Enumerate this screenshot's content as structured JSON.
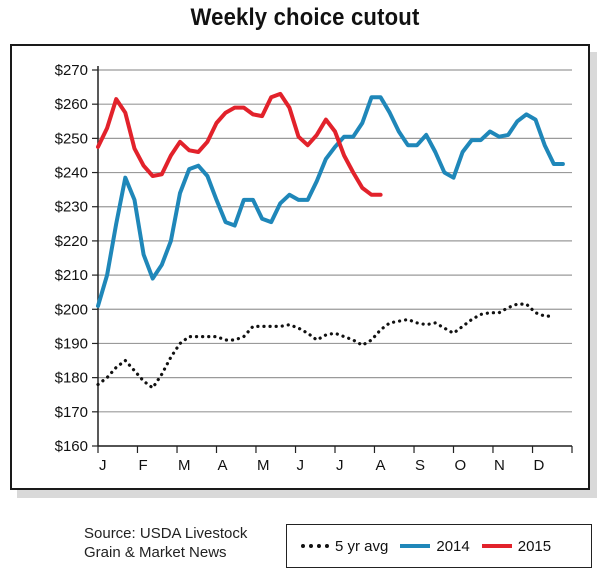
{
  "chart_data": {
    "type": "line",
    "title": "Weekly choice cutout",
    "ylim": [
      160,
      270
    ],
    "yticks": [
      160,
      170,
      180,
      190,
      200,
      210,
      220,
      230,
      240,
      250,
      260,
      270
    ],
    "ytick_labels": [
      "$160",
      "$170",
      "$180",
      "$190",
      "$200",
      "$210",
      "$220",
      "$230",
      "$240",
      "$250",
      "$260",
      "$270"
    ],
    "xlim": [
      0,
      52
    ],
    "month_ticks": [
      0,
      4.33,
      8.67,
      13,
      17.33,
      21.67,
      26,
      30.33,
      34.67,
      39,
      43.33,
      47.67,
      52
    ],
    "month_labels": [
      "J",
      "F",
      "M",
      "A",
      "M",
      "J",
      "J",
      "A",
      "S",
      "O",
      "N",
      "D"
    ],
    "grid": "horizontal",
    "series": [
      {
        "name": "5 yr avg",
        "color": "#111111",
        "style": "dotted",
        "points": [
          [
            0,
            178
          ],
          [
            1,
            180
          ],
          [
            2,
            183
          ],
          [
            3,
            185
          ],
          [
            4,
            182
          ],
          [
            5,
            179
          ],
          [
            6,
            177
          ],
          [
            7,
            181
          ],
          [
            8,
            186
          ],
          [
            9,
            190
          ],
          [
            10,
            192
          ],
          [
            11,
            192
          ],
          [
            12,
            192
          ],
          [
            13,
            192
          ],
          [
            14,
            191
          ],
          [
            15,
            191
          ],
          [
            16,
            192
          ],
          [
            17,
            195
          ],
          [
            18,
            195
          ],
          [
            19,
            195
          ],
          [
            20,
            195
          ],
          [
            21,
            195.5
          ],
          [
            22,
            194.5
          ],
          [
            23,
            193
          ],
          [
            24,
            191
          ],
          [
            25,
            192.5
          ],
          [
            26,
            193
          ],
          [
            27,
            192
          ],
          [
            28,
            191
          ],
          [
            29,
            189.5
          ],
          [
            30,
            191
          ],
          [
            31,
            194
          ],
          [
            32,
            196
          ],
          [
            33,
            196.5
          ],
          [
            34,
            197
          ],
          [
            35,
            196
          ],
          [
            36,
            195.5
          ],
          [
            37,
            196
          ],
          [
            38,
            194.5
          ],
          [
            39,
            193
          ],
          [
            40,
            195
          ],
          [
            41,
            197
          ],
          [
            42,
            198.5
          ],
          [
            43,
            199
          ],
          [
            44,
            199
          ],
          [
            45,
            200.5
          ],
          [
            46,
            201.5
          ],
          [
            47,
            201.5
          ],
          [
            48,
            199
          ],
          [
            49,
            198
          ],
          [
            50,
            198
          ]
        ]
      },
      {
        "name": "2014",
        "color": "#1f87b9",
        "style": "solid",
        "points": [
          [
            0,
            201
          ],
          [
            1,
            210
          ],
          [
            2,
            225
          ],
          [
            3,
            238.5
          ],
          [
            4,
            232
          ],
          [
            5,
            216
          ],
          [
            6,
            209
          ],
          [
            7,
            213
          ],
          [
            8,
            220
          ],
          [
            9,
            234
          ],
          [
            10,
            241
          ],
          [
            11,
            242
          ],
          [
            12,
            239
          ],
          [
            13,
            232
          ],
          [
            14,
            225.5
          ],
          [
            15,
            224.5
          ],
          [
            16,
            232
          ],
          [
            17,
            232
          ],
          [
            18,
            226.5
          ],
          [
            19,
            225.5
          ],
          [
            20,
            231
          ],
          [
            21,
            233.5
          ],
          [
            22,
            232
          ],
          [
            23,
            232
          ],
          [
            24,
            237.5
          ],
          [
            25,
            244
          ],
          [
            26,
            247.5
          ],
          [
            27,
            250.5
          ],
          [
            28,
            250.5
          ],
          [
            29,
            254.5
          ],
          [
            30,
            262
          ],
          [
            31,
            262
          ],
          [
            32,
            257.5
          ],
          [
            33,
            252
          ],
          [
            34,
            248
          ],
          [
            35,
            248
          ],
          [
            36,
            251
          ],
          [
            37,
            246
          ],
          [
            38,
            240
          ],
          [
            39,
            238.5
          ],
          [
            40,
            246
          ],
          [
            41,
            249.5
          ],
          [
            42,
            249.5
          ],
          [
            43,
            252
          ],
          [
            44,
            250.5
          ],
          [
            45,
            251
          ],
          [
            46,
            255
          ],
          [
            47,
            257
          ],
          [
            48,
            255.5
          ],
          [
            49,
            248
          ],
          [
            50,
            242.5
          ],
          [
            51,
            242.5
          ]
        ]
      },
      {
        "name": "2015",
        "color": "#e2222b",
        "style": "solid",
        "points": [
          [
            0,
            247.5
          ],
          [
            1,
            253
          ],
          [
            2,
            261.5
          ],
          [
            3,
            257.5
          ],
          [
            4,
            247
          ],
          [
            5,
            242
          ],
          [
            6,
            239
          ],
          [
            7,
            239.5
          ],
          [
            8,
            245
          ],
          [
            9,
            249
          ],
          [
            10,
            246.5
          ],
          [
            11,
            246
          ],
          [
            12,
            249
          ],
          [
            13,
            254.5
          ],
          [
            14,
            257.5
          ],
          [
            15,
            259
          ],
          [
            16,
            259
          ],
          [
            17,
            257
          ],
          [
            18,
            256.5
          ],
          [
            19,
            262
          ],
          [
            20,
            263
          ],
          [
            21,
            259
          ],
          [
            22,
            250.5
          ],
          [
            23,
            248
          ],
          [
            24,
            251
          ],
          [
            25,
            255.5
          ],
          [
            26,
            252
          ],
          [
            27,
            245
          ],
          [
            28,
            240
          ],
          [
            29,
            235.5
          ],
          [
            30,
            233.5
          ],
          [
            31,
            233.5
          ]
        ]
      }
    ]
  },
  "source_text": [
    "Source: USDA Livestock",
    "Grain & Market News"
  ],
  "legend": {
    "items": [
      {
        "label": "5 yr avg"
      },
      {
        "label": "2014"
      },
      {
        "label": "2015"
      }
    ]
  }
}
